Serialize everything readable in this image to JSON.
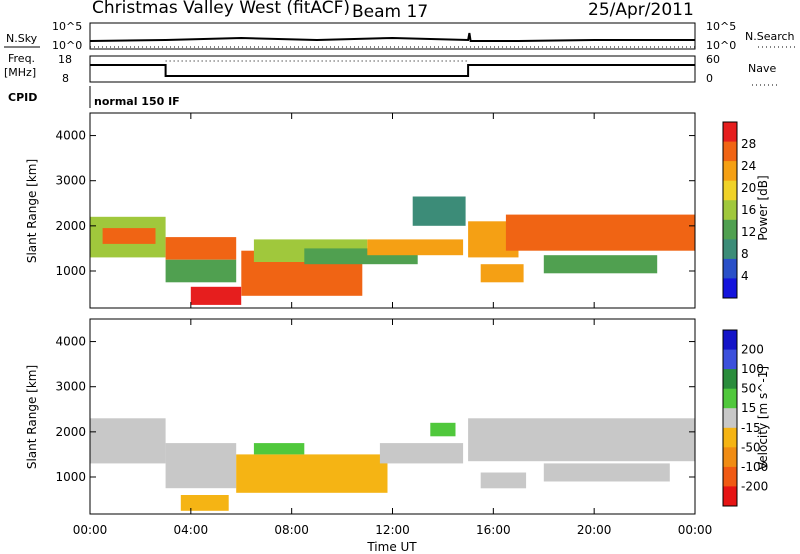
{
  "header": {
    "station": "Christmas Valley West (fitACF)",
    "beam": "Beam 17",
    "date": "25/Apr/2011"
  },
  "status_panels": {
    "nsky_label": "N.Sky",
    "nsearch_label": "N.Search",
    "noise_ticks": [
      "10^5",
      "10^0"
    ],
    "freq_label_1": "Freq.",
    "freq_label_2": "[MHz]",
    "freq_ticks": [
      "18",
      "8"
    ],
    "nave_label": "Nave",
    "nave_ticks": [
      "60",
      "0"
    ],
    "cpid_label": "CPID",
    "cpid_value": "normal 150 IF"
  },
  "time_axis": {
    "label": "Time UT",
    "ticks": [
      "00:00",
      "04:00",
      "08:00",
      "12:00",
      "16:00",
      "20:00",
      "00:00"
    ]
  },
  "colors": {
    "power_scale": [
      "#1414dc",
      "#2a50c8",
      "#3c8c78",
      "#50a050",
      "#a0c83c",
      "#f0d228",
      "#f5a014",
      "#f06414",
      "#e61e1e"
    ],
    "velocity_scale": [
      "#1414c8",
      "#3c50dc",
      "#2a8c3c",
      "#50c83c",
      "#c8c8c8",
      "#f5b414",
      "#f08c14",
      "#f05a14",
      "#e61414"
    ],
    "noise_line": "#000000"
  },
  "chart_data": [
    {
      "type": "heatmap",
      "title": "",
      "xlabel": "Time UT",
      "ylabel": "Slant Range [km]",
      "x_ticks": [
        "00:00",
        "04:00",
        "08:00",
        "12:00",
        "16:00",
        "20:00",
        "00:00"
      ],
      "y_ticks": [
        1000,
        2000,
        3000,
        4000
      ],
      "xlim_hours": [
        0,
        24
      ],
      "ylim_km": [
        180,
        4500
      ],
      "colorbar": {
        "label": "Power [dB]",
        "ticks": [
          4,
          8,
          12,
          16,
          20,
          24,
          28
        ],
        "range": [
          0,
          30
        ]
      },
      "bands": [
        {
          "t0": 0.0,
          "t1": 3.0,
          "r0": 1300,
          "r1": 2200,
          "value": 16
        },
        {
          "t0": 0.5,
          "t1": 2.6,
          "r0": 1600,
          "r1": 1950,
          "value": 26
        },
        {
          "t0": 3.0,
          "t1": 5.8,
          "r0": 1250,
          "r1": 1750,
          "value": 24
        },
        {
          "t0": 3.0,
          "t1": 5.8,
          "r0": 750,
          "r1": 1250,
          "value": 12
        },
        {
          "t0": 4.0,
          "t1": 6.0,
          "r0": 250,
          "r1": 650,
          "value": 27
        },
        {
          "t0": 6.0,
          "t1": 10.8,
          "r0": 450,
          "r1": 1450,
          "value": 26
        },
        {
          "t0": 6.5,
          "t1": 11.0,
          "r0": 1200,
          "r1": 1700,
          "value": 16
        },
        {
          "t0": 8.5,
          "t1": 13.0,
          "r0": 1150,
          "r1": 1500,
          "value": 10
        },
        {
          "t0": 11.0,
          "t1": 14.8,
          "r0": 1350,
          "r1": 1700,
          "value": 22
        },
        {
          "t0": 12.8,
          "t1": 14.9,
          "r0": 2000,
          "r1": 2650,
          "value": 8
        },
        {
          "t0": 15.0,
          "t1": 17.0,
          "r0": 1300,
          "r1": 2100,
          "value": 20
        },
        {
          "t0": 15.5,
          "t1": 17.2,
          "r0": 750,
          "r1": 1150,
          "value": 22
        },
        {
          "t0": 16.5,
          "t1": 24.0,
          "r0": 1450,
          "r1": 2250,
          "value": 25
        },
        {
          "t0": 18.0,
          "t1": 22.5,
          "r0": 950,
          "r1": 1350,
          "value": 12
        }
      ]
    },
    {
      "type": "heatmap",
      "title": "",
      "xlabel": "Time UT",
      "ylabel": "Slant Range [km]",
      "x_ticks": [
        "00:00",
        "04:00",
        "08:00",
        "12:00",
        "16:00",
        "20:00",
        "00:00"
      ],
      "y_ticks": [
        1000,
        2000,
        3000,
        4000
      ],
      "xlim_hours": [
        0,
        24
      ],
      "ylim_km": [
        180,
        4500
      ],
      "colorbar": {
        "label": "Velocity [m s^-1]",
        "ticks": [
          200,
          100,
          50,
          15,
          -15,
          -50,
          -100,
          -200
        ],
        "range": [
          -250,
          250
        ]
      },
      "bands": [
        {
          "t0": 0.0,
          "t1": 3.0,
          "r0": 1300,
          "r1": 2300,
          "value": 0
        },
        {
          "t0": 3.0,
          "t1": 5.8,
          "r0": 750,
          "r1": 1750,
          "value": 0
        },
        {
          "t0": 3.6,
          "t1": 5.5,
          "r0": 250,
          "r1": 600,
          "value": -30
        },
        {
          "t0": 5.8,
          "t1": 11.8,
          "r0": 650,
          "r1": 1500,
          "value": -40
        },
        {
          "t0": 6.5,
          "t1": 8.5,
          "r0": 1500,
          "r1": 1750,
          "value": 30
        },
        {
          "t0": 11.5,
          "t1": 14.8,
          "r0": 1300,
          "r1": 1750,
          "value": 0
        },
        {
          "t0": 13.5,
          "t1": 14.5,
          "r0": 1900,
          "r1": 2200,
          "value": 30
        },
        {
          "t0": 15.0,
          "t1": 24.0,
          "r0": 1350,
          "r1": 2300,
          "value": 0
        },
        {
          "t0": 15.5,
          "t1": 17.3,
          "r0": 750,
          "r1": 1100,
          "value": 0
        },
        {
          "t0": 18.0,
          "t1": 23.0,
          "r0": 900,
          "r1": 1300,
          "value": 0
        }
      ]
    }
  ]
}
